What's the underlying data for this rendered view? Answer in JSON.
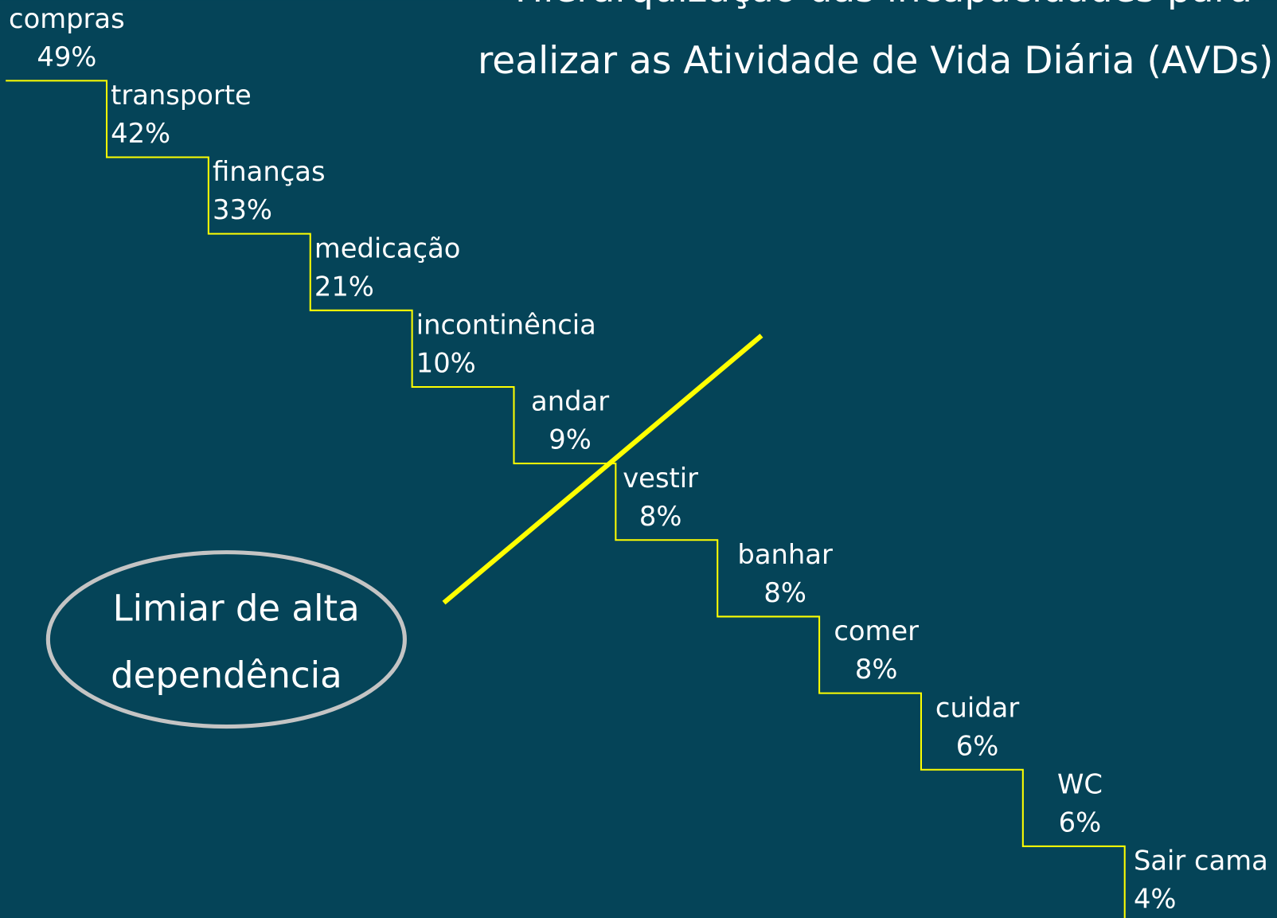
{
  "title": [
    "Hierarquização das incapacidades para",
    "realizar as Atividade de Vida Diária (AVDs)"
  ],
  "steps": [
    {
      "label": "compras",
      "value": "49%"
    },
    {
      "label": "transporte",
      "value": "42%"
    },
    {
      "label": "finanças",
      "value": "33%"
    },
    {
      "label": "medicação",
      "value": "21%"
    },
    {
      "label": "incontinência",
      "value": "10%"
    },
    {
      "label": "andar",
      "value": "9%"
    },
    {
      "label": "vestir",
      "value": "8%"
    },
    {
      "label": "banhar",
      "value": "8%"
    },
    {
      "label": "comer",
      "value": "8%"
    },
    {
      "label": "cuidar",
      "value": "6%"
    },
    {
      "label": "WC",
      "value": "6%"
    },
    {
      "label": "Sair cama",
      "value": "4%"
    }
  ],
  "threshold": [
    "Limiar de alta",
    "dependência"
  ]
}
